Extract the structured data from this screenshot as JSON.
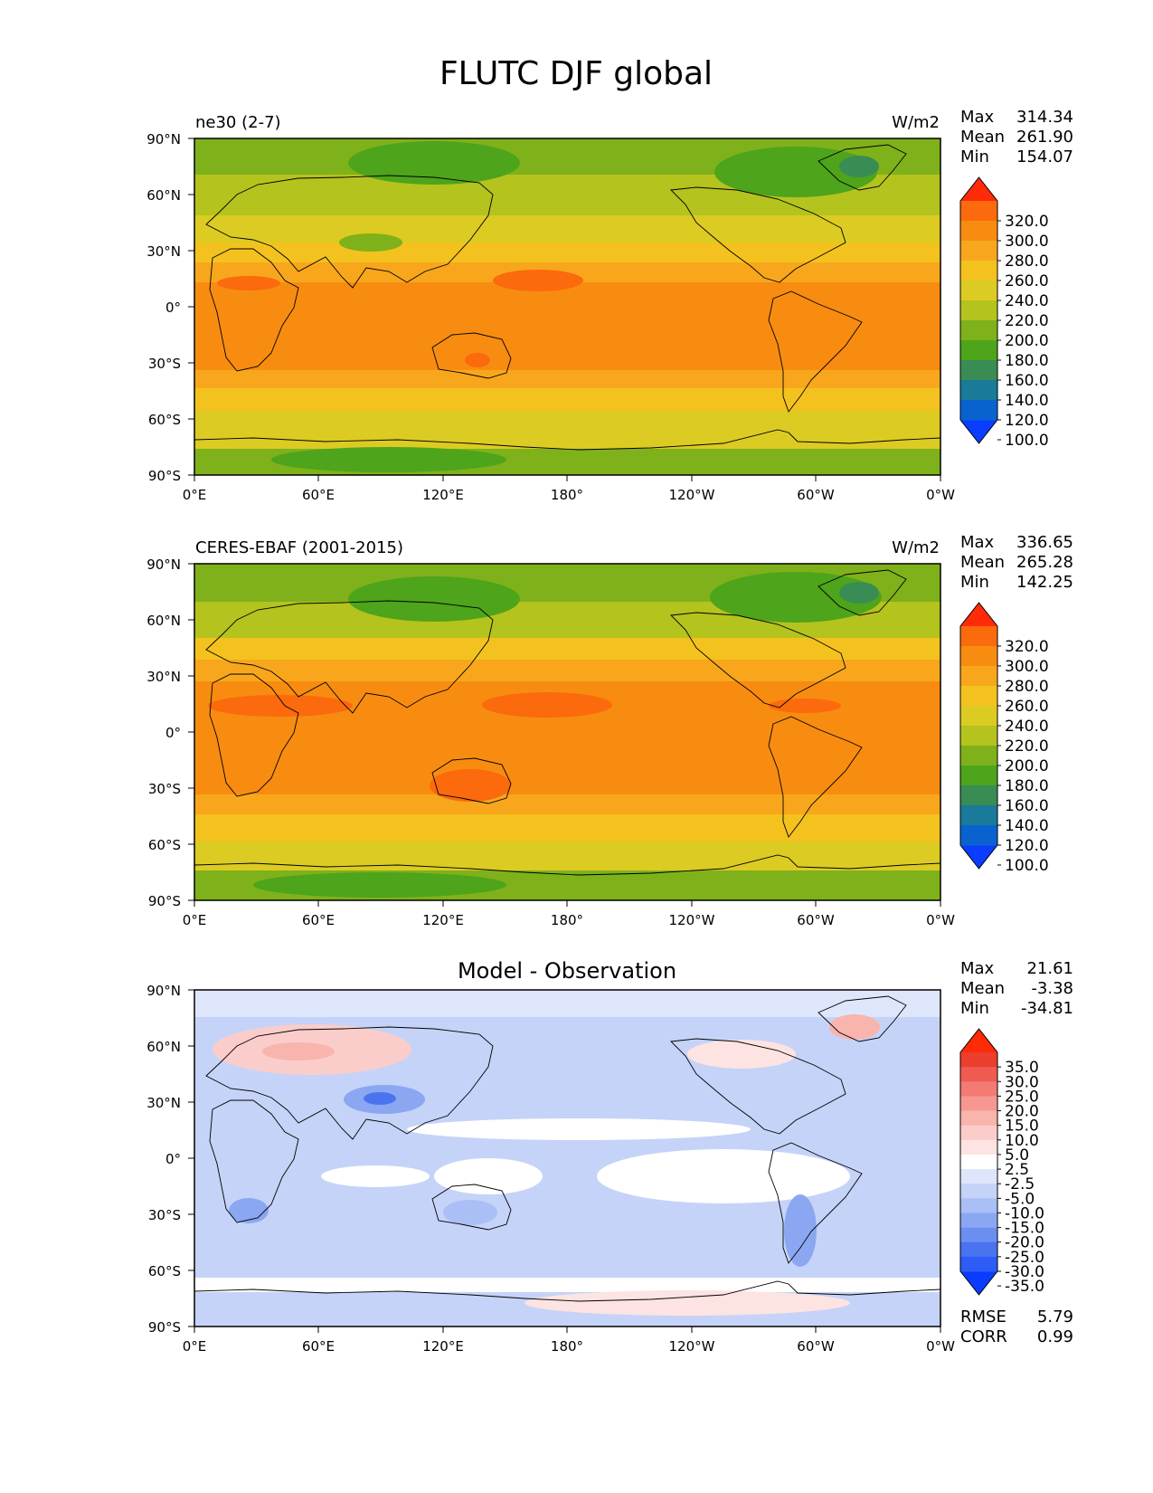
{
  "figure": {
    "title": "FLUTC DJF global"
  },
  "colors": {
    "abs_levels": [
      "#0a3dff",
      "#0a62cf",
      "#1a7a9a",
      "#3a8c55",
      "#4ea41a",
      "#7fb11b",
      "#b4c31e",
      "#dccb22",
      "#f4c21e",
      "#f8a71c",
      "#f88c10",
      "#fb6a0d",
      "#ff2a08"
    ],
    "diff_levels": [
      "#0a3cff",
      "#2d5cf6",
      "#4a73f0",
      "#6b8ff0",
      "#8ba7f2",
      "#a9bff5",
      "#c5d3f8",
      "#dee6fb",
      "#ffffff",
      "#fde3e1",
      "#fbcdca",
      "#f9b4ae",
      "#f69891",
      "#f37b73",
      "#f05b51",
      "#ec3e2e",
      "#ff2a08"
    ],
    "coast": "#000000"
  },
  "axes": {
    "lon_ticks": [
      "0°E",
      "60°E",
      "120°E",
      "180°",
      "120°W",
      "60°W",
      "0°W"
    ],
    "lat_ticks": [
      "90°N",
      "60°N",
      "30°N",
      "0°",
      "30°S",
      "60°S",
      "90°S"
    ]
  },
  "panels": [
    {
      "id": "model",
      "title_left": "ne30 (2-7)",
      "title_center": "",
      "units": "W/m2",
      "stats": [
        {
          "label": "Max",
          "value": "314.34"
        },
        {
          "label": "Mean",
          "value": "261.90"
        },
        {
          "label": "Min",
          "value": "154.07"
        }
      ],
      "colorbar_labels": [
        "320.0",
        "300.0",
        "280.0",
        "260.0",
        "240.0",
        "220.0",
        "200.0",
        "180.0",
        "160.0",
        "140.0",
        "120.0",
        "100.0"
      ],
      "extra": []
    },
    {
      "id": "obs",
      "title_left": "CERES-EBAF (2001-2015)",
      "title_center": "",
      "units": "W/m2",
      "stats": [
        {
          "label": "Max",
          "value": "336.65"
        },
        {
          "label": "Mean",
          "value": "265.28"
        },
        {
          "label": "Min",
          "value": "142.25"
        }
      ],
      "colorbar_labels": [
        "320.0",
        "300.0",
        "280.0",
        "260.0",
        "240.0",
        "220.0",
        "200.0",
        "180.0",
        "160.0",
        "140.0",
        "120.0",
        "100.0"
      ],
      "extra": []
    },
    {
      "id": "diff",
      "title_left": "",
      "title_center": "Model - Observation",
      "units": "",
      "stats": [
        {
          "label": "Max",
          "value": "21.61"
        },
        {
          "label": "Mean",
          "value": "-3.38"
        },
        {
          "label": "Min",
          "value": "-34.81"
        }
      ],
      "colorbar_labels": [
        "35.0",
        "30.0",
        "25.0",
        "20.0",
        "15.0",
        "10.0",
        "5.0",
        "2.5",
        "-2.5",
        "-5.0",
        "-10.0",
        "-15.0",
        "-20.0",
        "-25.0",
        "-30.0",
        "-35.0"
      ],
      "extra": [
        {
          "label": "RMSE",
          "value": "5.79"
        },
        {
          "label": "CORR",
          "value": "0.99"
        }
      ]
    }
  ]
}
